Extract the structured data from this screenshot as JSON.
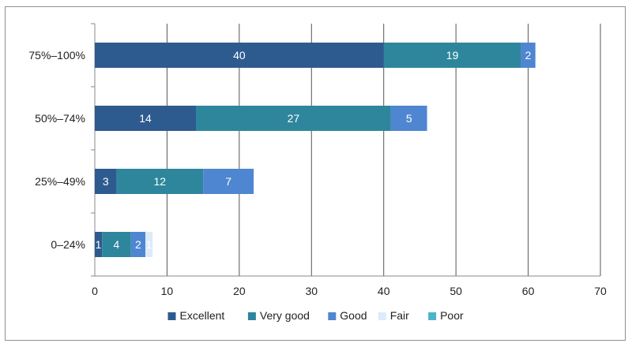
{
  "chart_data": {
    "type": "bar",
    "orientation": "horizontal",
    "stacked": true,
    "title": "",
    "xlabel": "",
    "ylabel": "",
    "categories": [
      "75%–100%",
      "50%–74%",
      "25%–49%",
      "0–24%"
    ],
    "series": [
      {
        "name": "Excellent",
        "color": "#2e5b8f",
        "values": [
          40,
          14,
          3,
          1
        ]
      },
      {
        "name": "Very good",
        "color": "#2e869c",
        "values": [
          19,
          27,
          12,
          4
        ]
      },
      {
        "name": "Good",
        "color": "#4f86d1",
        "values": [
          2,
          5,
          7,
          2
        ]
      },
      {
        "name": "Fair",
        "color": "#dcebf8",
        "values": [
          0,
          0,
          0,
          1
        ]
      },
      {
        "name": "Poor",
        "color": "#4db3c9",
        "values": [
          0,
          0,
          0,
          0
        ]
      }
    ],
    "xlim": [
      0,
      70
    ],
    "xticks": [
      0,
      10,
      20,
      30,
      40,
      50,
      60,
      70
    ],
    "grid": "vertical",
    "legend": "bottom"
  }
}
